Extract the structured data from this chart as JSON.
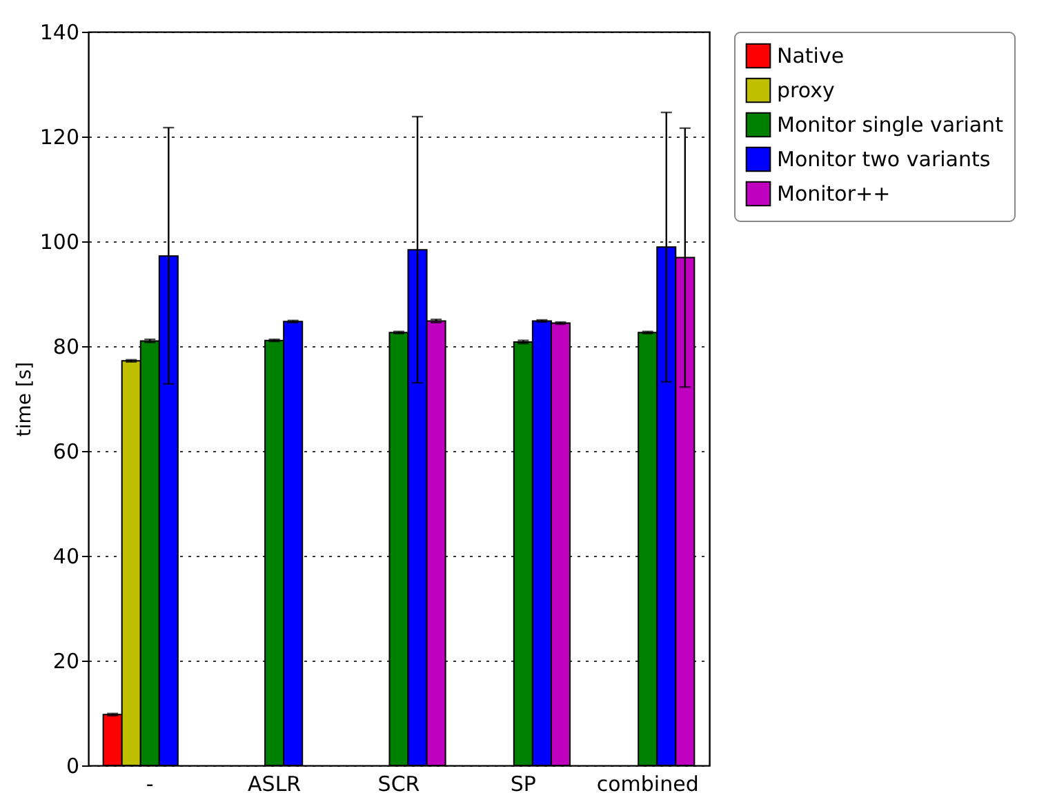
{
  "chart_data": {
    "type": "bar",
    "ylabel": "time [s]",
    "categories": [
      "-",
      "ASLR",
      "SCR",
      "SP",
      "combined"
    ],
    "series": [
      {
        "name": "Native",
        "color": "#ff0000",
        "values": [
          9.7,
          null,
          null,
          null,
          null
        ],
        "errors": [
          0.2,
          null,
          null,
          null,
          null
        ]
      },
      {
        "name": "proxy",
        "color": "#bfbf00",
        "values": [
          77.2,
          null,
          null,
          null,
          null
        ],
        "errors": [
          0.2,
          null,
          null,
          null,
          null
        ]
      },
      {
        "name": "Monitor single variant",
        "color": "#008000",
        "values": [
          81.0,
          81.1,
          82.6,
          80.8,
          82.6
        ],
        "errors": [
          0.3,
          0.2,
          0.2,
          0.3,
          0.2
        ]
      },
      {
        "name": "Monitor two variants",
        "color": "#0000ff",
        "values": [
          97.2,
          84.7,
          98.4,
          84.8,
          98.9
        ],
        "errors": [
          [
            72.8,
            121.7
          ],
          0.2,
          [
            73.0,
            123.8
          ],
          0.2,
          [
            73.2,
            124.6
          ]
        ]
      },
      {
        "name": "Monitor++",
        "color": "#bf00bf",
        "values": [
          null,
          null,
          84.8,
          84.4,
          96.9
        ],
        "errors": [
          null,
          null,
          0.3,
          0.2,
          [
            72.2,
            121.6
          ]
        ]
      }
    ],
    "ylim": [
      0,
      140
    ],
    "yticks": [
      0,
      20,
      40,
      60,
      80,
      100,
      120,
      140
    ],
    "grid": "y",
    "legend": "right"
  }
}
